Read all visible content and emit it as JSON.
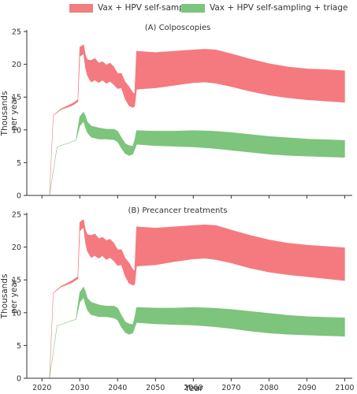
{
  "legend": {
    "items": [
      {
        "label": "Vax + HPV self-sampling",
        "color": "#f08080"
      },
      {
        "label": "Vax + HPV self-sampling + triage",
        "color": "#7cc57c"
      }
    ]
  },
  "colors": {
    "red_band": "#f47a7f",
    "green_band": "#7dc47d",
    "axis": "#333333"
  },
  "chart_data": [
    {
      "type": "area",
      "title": "(A) Colposcopies",
      "xlabel": "",
      "ylabel": "Thousands\nper year",
      "xlim": [
        2016,
        2102
      ],
      "ylim": [
        0,
        25
      ],
      "yticks": [
        0,
        5,
        10,
        15,
        20,
        25
      ],
      "xticks": [
        2020,
        2030,
        2040,
        2050,
        2060,
        2070,
        2080,
        2090,
        2100
      ],
      "grid": false,
      "series": [
        {
          "name": "Vax + HPV self-sampling",
          "color": "#f47a7f",
          "x": [
            2022,
            2023,
            2025,
            2028,
            2029.5,
            2030,
            2031,
            2031.5,
            2032,
            2033,
            2034,
            2035,
            2036,
            2037,
            2038,
            2039,
            2040,
            2041,
            2042,
            2043,
            2044,
            2044.5,
            2045,
            2050,
            2055,
            2060,
            2063,
            2066,
            2070,
            2075,
            2080,
            2085,
            2090,
            2095,
            2100
          ],
          "lower": [
            0,
            12.2,
            13.1,
            13.7,
            14.3,
            21.2,
            21.6,
            19.5,
            18.3,
            17.3,
            17.6,
            17.2,
            17.6,
            17.1,
            17.4,
            16.9,
            16.3,
            16.4,
            14.7,
            13.7,
            13.4,
            13.6,
            16.2,
            16.4,
            16.8,
            17.2,
            17.3,
            17.1,
            16.6,
            15.9,
            15.3,
            14.9,
            14.6,
            14.4,
            14.2
          ],
          "upper": [
            0,
            12.2,
            13.2,
            14.0,
            14.6,
            22.6,
            23.0,
            21.4,
            20.7,
            20.6,
            20.9,
            20.2,
            20.4,
            19.9,
            20.2,
            19.6,
            18.6,
            18.6,
            17.3,
            16.6,
            15.7,
            15.4,
            22.0,
            21.8,
            22.0,
            22.2,
            22.3,
            22.2,
            21.6,
            20.8,
            20.1,
            19.6,
            19.3,
            19.2,
            19.0
          ]
        },
        {
          "name": "Vax + HPV self-sampling + triage",
          "color": "#7dc47d",
          "x": [
            2022,
            2024,
            2029,
            2030,
            2031,
            2031.5,
            2032,
            2033,
            2035,
            2037,
            2039,
            2040,
            2041,
            2042,
            2043,
            2044,
            2044.5,
            2045,
            2050,
            2055,
            2060,
            2065,
            2070,
            2075,
            2080,
            2085,
            2090,
            2095,
            2100
          ],
          "lower": [
            0,
            7.4,
            8.4,
            10.6,
            11.3,
            10.4,
            9.6,
            8.9,
            8.6,
            8.6,
            8.5,
            8.2,
            7.2,
            6.4,
            6.1,
            6.3,
            7.0,
            7.8,
            7.6,
            7.5,
            7.4,
            7.2,
            6.9,
            6.6,
            6.3,
            6.1,
            6.0,
            5.9,
            5.8
          ],
          "upper": [
            0,
            7.4,
            8.4,
            12.0,
            12.7,
            12.1,
            11.2,
            10.6,
            10.3,
            10.1,
            10.1,
            9.8,
            8.8,
            7.9,
            7.6,
            7.5,
            8.4,
            9.9,
            9.8,
            9.8,
            9.9,
            9.8,
            9.6,
            9.3,
            9.0,
            8.8,
            8.6,
            8.5,
            8.4
          ]
        }
      ]
    },
    {
      "type": "area",
      "title": "(B) Precancer treatments",
      "xlabel": "Year",
      "ylabel": "Thousands\nper year",
      "xlim": [
        2016,
        2102
      ],
      "ylim": [
        0,
        25
      ],
      "yticks": [
        0,
        5,
        10,
        15,
        20,
        25
      ],
      "xticks": [
        2020,
        2030,
        2040,
        2050,
        2060,
        2070,
        2080,
        2090,
        2100
      ],
      "grid": false,
      "series": [
        {
          "name": "Vax + HPV self-sampling",
          "color": "#f47a7f",
          "x": [
            2022,
            2023,
            2025,
            2028,
            2029.5,
            2030,
            2031,
            2031.5,
            2032,
            2033,
            2034,
            2035,
            2036,
            2037,
            2038,
            2039,
            2040,
            2041,
            2042,
            2043,
            2044,
            2044.5,
            2045,
            2050,
            2055,
            2060,
            2063,
            2066,
            2070,
            2075,
            2080,
            2085,
            2090,
            2095,
            2100
          ],
          "lower": [
            0,
            13.0,
            13.9,
            14.6,
            15.2,
            22.5,
            23.0,
            20.7,
            19.4,
            18.4,
            18.7,
            18.3,
            18.7,
            18.1,
            18.4,
            17.9,
            17.2,
            17.3,
            15.6,
            14.5,
            14.2,
            14.3,
            17.1,
            17.3,
            17.8,
            18.2,
            18.3,
            18.1,
            17.6,
            16.8,
            16.2,
            15.8,
            15.5,
            15.2,
            14.9
          ],
          "upper": [
            0,
            13.0,
            14.0,
            14.9,
            15.5,
            23.8,
            24.2,
            22.6,
            21.9,
            21.8,
            22.0,
            21.3,
            21.5,
            21.0,
            21.2,
            20.6,
            19.6,
            19.6,
            18.3,
            17.6,
            16.6,
            16.3,
            23.1,
            22.9,
            23.1,
            23.3,
            23.4,
            23.3,
            22.6,
            21.8,
            21.1,
            20.6,
            20.3,
            20.1,
            19.9
          ]
        },
        {
          "name": "Vax + HPV self-sampling + triage",
          "color": "#7dc47d",
          "x": [
            2022,
            2024,
            2029,
            2030,
            2031,
            2031.5,
            2032,
            2033,
            2035,
            2037,
            2039,
            2040,
            2041,
            2042,
            2043,
            2044,
            2044.5,
            2045,
            2050,
            2055,
            2060,
            2065,
            2070,
            2075,
            2080,
            2085,
            2090,
            2095,
            2100
          ],
          "lower": [
            0,
            8.0,
            9.0,
            11.6,
            12.3,
            11.3,
            10.4,
            9.7,
            9.4,
            9.4,
            9.2,
            8.9,
            7.8,
            7.0,
            6.7,
            6.9,
            7.7,
            8.5,
            8.3,
            8.2,
            8.1,
            7.9,
            7.6,
            7.2,
            6.9,
            6.7,
            6.6,
            6.5,
            6.4
          ],
          "upper": [
            0,
            8.0,
            9.0,
            13.1,
            13.9,
            13.2,
            12.2,
            11.6,
            11.2,
            11.0,
            11.0,
            10.7,
            9.6,
            8.6,
            8.3,
            8.2,
            9.2,
            10.8,
            10.7,
            10.7,
            10.8,
            10.7,
            10.5,
            10.2,
            9.9,
            9.6,
            9.4,
            9.3,
            9.2
          ]
        }
      ]
    }
  ]
}
